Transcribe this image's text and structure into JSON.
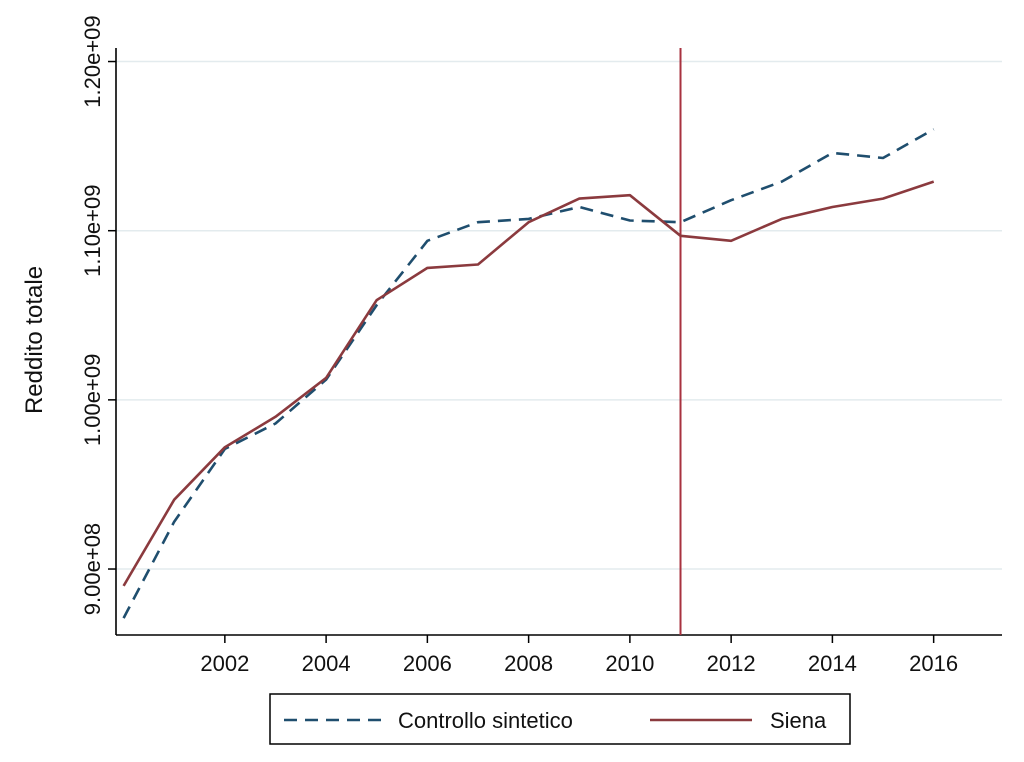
{
  "chart_data": {
    "type": "line",
    "title": "",
    "xlabel": "",
    "ylabel": "Reddito totale",
    "xlim": [
      1999.85,
      2017.35
    ],
    "ylim": [
      861000000,
      1208000000
    ],
    "x_ticks": [
      2002,
      2004,
      2006,
      2008,
      2010,
      2012,
      2014,
      2016
    ],
    "x_tick_labels": [
      "2002",
      "2004",
      "2006",
      "2008",
      "2010",
      "2012",
      "2014",
      "2016"
    ],
    "y_ticks": [
      900000000,
      1000000000,
      1100000000,
      1200000000
    ],
    "y_tick_labels": [
      "9.00e+08",
      "1.00e+09",
      "1.10e+09",
      "1.20e+09"
    ],
    "grid": true,
    "legend_position": "bottom",
    "reference_line": {
      "x": 2011,
      "color": "#a8323f"
    },
    "x": [
      2000,
      2001,
      2002,
      2003,
      2004,
      2005,
      2006,
      2007,
      2008,
      2009,
      2010,
      2011,
      2012,
      2013,
      2014,
      2015,
      2016
    ],
    "series": [
      {
        "name": "Controllo sintetico",
        "color": "#1f4e6e",
        "style": "dashed",
        "values": [
          871000000,
          928000000,
          971000000,
          986000000,
          1012000000,
          1056000000,
          1094000000,
          1105000000,
          1107000000,
          1114000000,
          1106000000,
          1105000000,
          1118000000,
          1129000000,
          1146000000,
          1143000000,
          1160000000
        ]
      },
      {
        "name": "Siena",
        "color": "#8b3a3e",
        "style": "solid",
        "values": [
          890000000,
          941000000,
          972000000,
          990000000,
          1013000000,
          1059000000,
          1078000000,
          1080000000,
          1105000000,
          1119000000,
          1121000000,
          1097000000,
          1094000000,
          1107000000,
          1114000000,
          1119000000,
          1129000000
        ]
      }
    ]
  }
}
